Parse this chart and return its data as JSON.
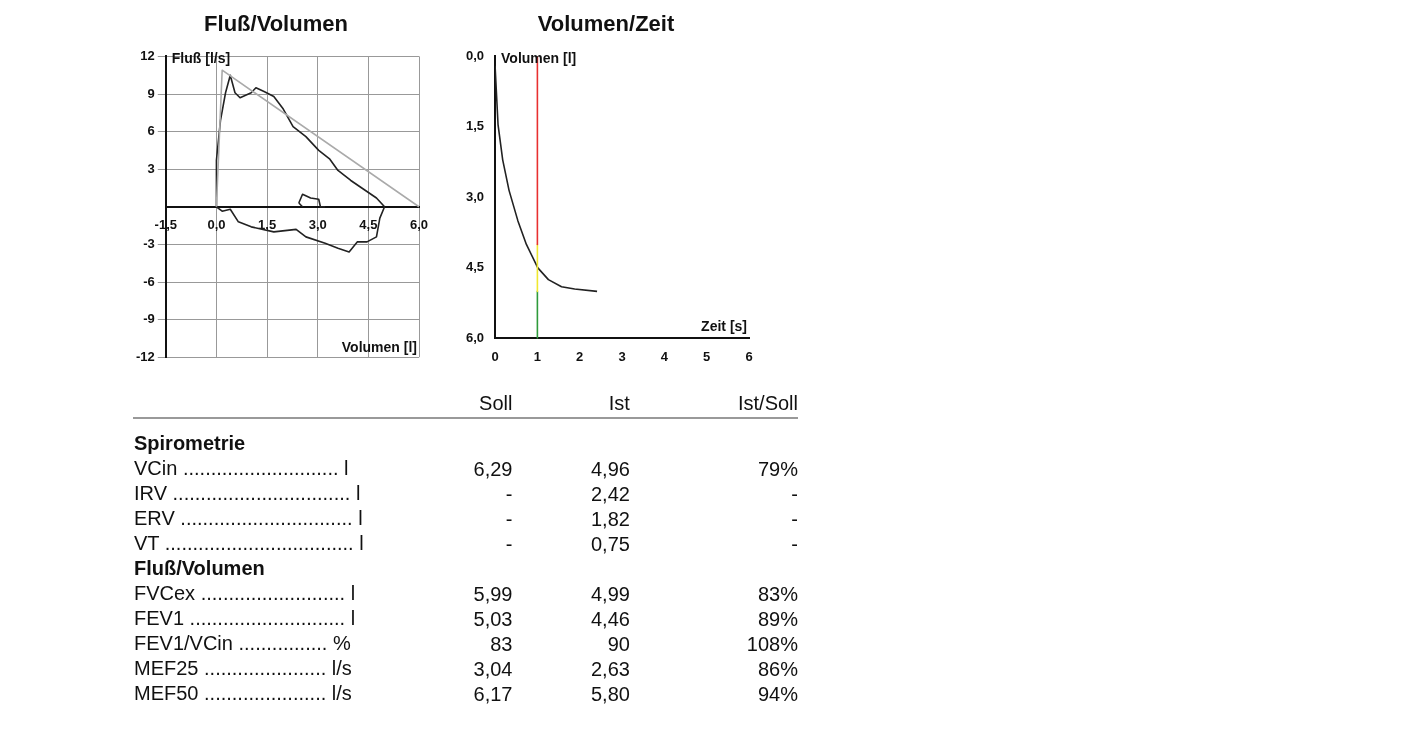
{
  "chart_data": [
    {
      "type": "line",
      "title": "Fluß/Volumen",
      "xlabel": "Volumen [l]",
      "ylabel": "Fluß [l/s]",
      "xlim": [
        -1.5,
        6
      ],
      "ylim": [
        -12,
        12
      ],
      "xticks": [
        {
          "value": -1.5,
          "label": "-1,5"
        },
        {
          "value": 0,
          "label": "0,0"
        },
        {
          "value": 1.5,
          "label": "1,5"
        },
        {
          "value": 3,
          "label": "3,0"
        },
        {
          "value": 4.5,
          "label": "4,5"
        },
        {
          "value": 6,
          "label": "6,0"
        }
      ],
      "yticks": [
        -12,
        -9,
        -6,
        -3,
        3,
        6,
        9,
        12
      ],
      "grid": true,
      "legend": false,
      "marker": "none",
      "line_style": "solid",
      "series": [
        {
          "color": "#aaaaaa",
          "x": [
            0,
            0.17,
            6
          ],
          "values": [
            0,
            10.9,
            0
          ]
        },
        {
          "color": "#222222",
          "x": [
            0,
            0,
            0.12,
            0.27,
            0.41,
            0.55,
            0.7,
            1.03,
            1.17,
            1.41,
            1.7,
            1.98,
            2.27,
            2.65,
            3.03,
            3.36,
            3.6,
            3.98,
            4.36,
            4.74,
            4.98
          ],
          "values": [
            0,
            3.7,
            6.9,
            9.1,
            10.5,
            9.1,
            8.7,
            9.1,
            9.5,
            9.2,
            8.8,
            7.8,
            6.4,
            5.6,
            4.5,
            3.8,
            2.9,
            2.1,
            1.4,
            0.7,
            0
          ]
        },
        {
          "color": "#222222",
          "x": [
            0,
            0.17,
            0.41,
            0.65,
            1.03,
            1.7,
            2.36,
            2.65,
            3.22,
            3.6,
            3.93,
            4.17,
            4.46,
            4.74,
            4.84,
            4.98
          ],
          "values": [
            0,
            -0.35,
            -0.2,
            -1.2,
            -1.6,
            -2,
            -1.8,
            -2.4,
            -2.9,
            -3.3,
            -3.6,
            -2.8,
            -2.8,
            -2.4,
            -0.9,
            0
          ]
        },
        {
          "color": "#222222",
          "x": [
            2.44,
            2.55,
            2.79,
            3.03,
            3.08,
            3.22
          ],
          "values": [
            0.3,
            1,
            0.7,
            0.6,
            0,
            0
          ]
        },
        {
          "color": "#222222",
          "x": [
            2.44,
            2.55
          ],
          "values": [
            0.3,
            0
          ]
        }
      ]
    },
    {
      "type": "line",
      "title": "Volumen/Zeit",
      "xlabel": "Zeit [s]",
      "ylabel": "Volumen [l]",
      "xlim": [
        0,
        6
      ],
      "ylim": [
        6,
        0
      ],
      "xticks": [
        0,
        1,
        2,
        3,
        4,
        5,
        6
      ],
      "yticks": [
        {
          "value": 0,
          "label": "0,0"
        },
        {
          "value": 1.5,
          "label": "1,5"
        },
        {
          "value": 3,
          "label": "3,0"
        },
        {
          "value": 4.5,
          "label": "4,5"
        },
        {
          "value": 6,
          "label": "6,0"
        }
      ],
      "legend": false,
      "marker": "none",
      "line_style": "solid",
      "series": [
        {
          "color": "#e83030",
          "x": [
            1,
            1
          ],
          "values": [
            0,
            4
          ]
        },
        {
          "color": "#f0e830",
          "x": [
            1,
            1
          ],
          "values": [
            4,
            5
          ]
        },
        {
          "color": "#2e9a3a",
          "x": [
            1,
            1
          ],
          "values": [
            5,
            6
          ]
        },
        {
          "color": "#222222",
          "x": [
            0,
            0.07,
            0.18,
            0.33,
            0.54,
            0.74,
            1.01,
            1.26,
            1.57,
            1.88,
            2.41
          ],
          "values": [
            0.2,
            1.45,
            2.2,
            2.85,
            3.5,
            4,
            4.5,
            4.75,
            4.9,
            4.95,
            5
          ]
        }
      ]
    },
    {
      "type": "other",
      "categories": [
        "Spirometrie",
        "VCin ............................ l",
        "IRV ................................ l",
        "ERV ............................... l",
        "VT .................................. l",
        "Fluß/Volumen",
        "FVCex .......................... l",
        "FEV1 ............................ l",
        "FEV1/VCin ................ %",
        "MEF25 ...................... l/s",
        "MEF50 ...................... l/s"
      ],
      "series": [
        {
          "name": "Soll",
          "values": [
            null,
            6.29,
            null,
            null,
            null,
            null,
            5.99,
            5.03,
            83,
            3.04,
            6.17
          ],
          "value_labels": [
            null,
            "6,29",
            "-",
            "-",
            "-",
            null,
            "5,99",
            "5,03",
            "83",
            "3,04",
            "6,17"
          ]
        },
        {
          "name": "Ist",
          "values": [
            null,
            4.96,
            2.42,
            1.82,
            0.75,
            null,
            4.99,
            4.46,
            90,
            2.63,
            5.8
          ],
          "value_labels": [
            null,
            "4,96",
            "2,42",
            "1,82",
            "0,75",
            null,
            "4,99",
            "4,46",
            "90",
            "2,63",
            "5,80"
          ]
        },
        {
          "name": "Ist/Soll",
          "values": [
            null,
            79,
            null,
            null,
            null,
            null,
            83,
            89,
            108,
            86,
            94
          ],
          "value_labels": [
            null,
            "79%",
            "-",
            "-",
            "-",
            null,
            "83%",
            "89%",
            "108%",
            "86%",
            "94%"
          ]
        }
      ]
    }
  ]
}
